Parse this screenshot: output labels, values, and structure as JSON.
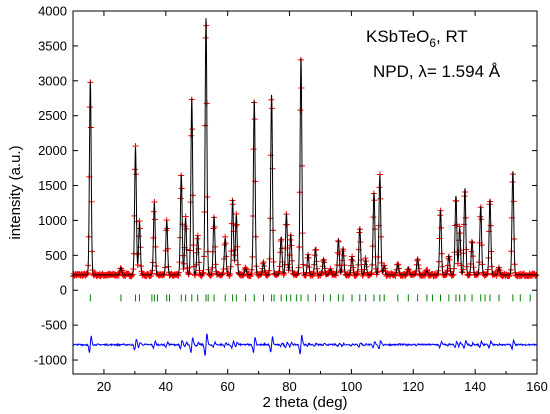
{
  "chart_data": {
    "type": "scatter",
    "xlabel": "2 theta (deg)",
    "ylabel": "intensity (a.u.)",
    "xlim": [
      10,
      160
    ],
    "ylim": [
      -1200,
      4000
    ],
    "x_ticks": [
      20,
      40,
      60,
      80,
      100,
      120,
      140,
      160
    ],
    "y_ticks": [
      -1000,
      -500,
      0,
      500,
      1000,
      1500,
      2000,
      2500,
      3000,
      3500,
      4000
    ],
    "grid": false,
    "legend": "none",
    "annotations": [
      {
        "lines": [
          "KSbTeO",
          "6",
          ", RT"
        ],
        "position": "top-right"
      },
      {
        "lines": [
          "NPD, ",
          "λ",
          "= 1.594 Å"
        ],
        "position": "top-right"
      }
    ],
    "background": 220,
    "difference_offset": -780,
    "peaks": [
      {
        "x": 15.6,
        "y": 3000
      },
      {
        "x": 25.5,
        "y": 330
      },
      {
        "x": 30.2,
        "y": 2050
      },
      {
        "x": 31.5,
        "y": 980
      },
      {
        "x": 36.3,
        "y": 1250
      },
      {
        "x": 40.3,
        "y": 1000
      },
      {
        "x": 45.0,
        "y": 1660
      },
      {
        "x": 46.4,
        "y": 1040
      },
      {
        "x": 48.4,
        "y": 2750
      },
      {
        "x": 50.3,
        "y": 780
      },
      {
        "x": 53.0,
        "y": 3900
      },
      {
        "x": 55.6,
        "y": 1060
      },
      {
        "x": 59.2,
        "y": 750
      },
      {
        "x": 61.6,
        "y": 1300
      },
      {
        "x": 62.8,
        "y": 1080
      },
      {
        "x": 65.8,
        "y": 320
      },
      {
        "x": 68.6,
        "y": 2720
      },
      {
        "x": 71.6,
        "y": 400
      },
      {
        "x": 74.2,
        "y": 2800
      },
      {
        "x": 77.3,
        "y": 760
      },
      {
        "x": 79.0,
        "y": 1100
      },
      {
        "x": 80.4,
        "y": 800
      },
      {
        "x": 83.7,
        "y": 3330
      },
      {
        "x": 86.0,
        "y": 520
      },
      {
        "x": 88.4,
        "y": 600
      },
      {
        "x": 91.0,
        "y": 450
      },
      {
        "x": 93.2,
        "y": 300
      },
      {
        "x": 95.8,
        "y": 720
      },
      {
        "x": 97.3,
        "y": 600
      },
      {
        "x": 100.2,
        "y": 480
      },
      {
        "x": 102.7,
        "y": 900
      },
      {
        "x": 104.6,
        "y": 450
      },
      {
        "x": 107.3,
        "y": 1400
      },
      {
        "x": 109.2,
        "y": 1650
      },
      {
        "x": 110.6,
        "y": 350
      },
      {
        "x": 115.0,
        "y": 380
      },
      {
        "x": 118.4,
        "y": 320
      },
      {
        "x": 121.4,
        "y": 460
      },
      {
        "x": 124.4,
        "y": 280
      },
      {
        "x": 128.8,
        "y": 1150
      },
      {
        "x": 131.5,
        "y": 500
      },
      {
        "x": 133.8,
        "y": 1350
      },
      {
        "x": 135.0,
        "y": 900
      },
      {
        "x": 136.7,
        "y": 1460
      },
      {
        "x": 139.0,
        "y": 700
      },
      {
        "x": 141.8,
        "y": 1200
      },
      {
        "x": 144.8,
        "y": 1300
      },
      {
        "x": 147.7,
        "y": 330
      },
      {
        "x": 152.2,
        "y": 1700
      }
    ],
    "reflections": [
      15.6,
      25.5,
      30.2,
      31.5,
      35.5,
      36.3,
      37.3,
      40.3,
      41.2,
      45.0,
      46.4,
      48.4,
      50.3,
      53.0,
      53.7,
      55.6,
      59.2,
      61.6,
      62.8,
      65.8,
      68.6,
      71.6,
      74.2,
      75.0,
      77.3,
      79.0,
      80.4,
      82.3,
      83.7,
      86.0,
      88.4,
      91.0,
      93.2,
      95.8,
      97.3,
      100.2,
      102.7,
      104.6,
      107.3,
      109.2,
      110.6,
      115.0,
      118.4,
      121.4,
      124.4,
      126.2,
      128.8,
      131.5,
      133.8,
      135.0,
      136.7,
      139.0,
      141.8,
      143.2,
      144.8,
      147.7,
      152.2,
      154.6,
      157.8
    ],
    "colors": {
      "observed": "#ff0000",
      "calculated": "#000000",
      "difference": "#0000ff",
      "reflections": "#008000"
    }
  }
}
